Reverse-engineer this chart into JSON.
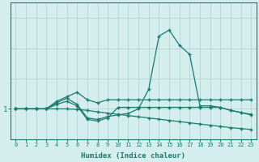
{
  "xlabel": "Humidex (Indice chaleur)",
  "xlim": [
    -0.5,
    23.5
  ],
  "ylim": [
    0.0,
    4.5
  ],
  "yticks": [
    1
  ],
  "xticks": [
    0,
    1,
    2,
    3,
    4,
    5,
    6,
    7,
    8,
    9,
    10,
    11,
    12,
    13,
    14,
    15,
    16,
    17,
    18,
    19,
    20,
    21,
    22,
    23
  ],
  "background_color": "#d4eeee",
  "line_color": "#1a7a6e",
  "grid_color": "#b8d8d8",
  "line1_x": [
    0,
    1,
    2,
    3,
    4,
    5,
    6,
    7,
    8,
    9,
    10,
    11,
    12,
    13,
    14,
    15,
    16,
    17,
    18,
    19,
    20,
    21,
    22,
    23
  ],
  "line1_y": [
    1.0,
    1.0,
    1.0,
    1.0,
    1.25,
    1.4,
    1.55,
    1.3,
    1.2,
    1.3,
    1.3,
    1.3,
    1.3,
    1.3,
    1.3,
    1.3,
    1.3,
    1.3,
    1.3,
    1.3,
    1.3,
    1.3,
    1.3,
    1.3
  ],
  "line2_x": [
    0,
    1,
    2,
    3,
    4,
    5,
    6,
    7,
    8,
    9,
    10,
    11,
    12,
    13,
    14,
    15,
    16,
    17,
    18,
    19,
    20,
    21,
    22,
    23
  ],
  "line2_y": [
    1.0,
    1.0,
    1.0,
    1.0,
    1.2,
    1.35,
    1.15,
    0.7,
    0.65,
    0.75,
    0.8,
    0.85,
    1.0,
    1.65,
    3.4,
    3.6,
    3.1,
    2.8,
    1.1,
    1.1,
    1.05,
    0.95,
    0.88,
    0.82
  ],
  "line3_x": [
    0,
    1,
    2,
    3,
    4,
    5,
    6,
    7,
    8,
    9,
    10,
    11,
    12,
    13,
    14,
    15,
    16,
    17,
    18,
    19,
    20,
    21,
    22,
    23
  ],
  "line3_y": [
    1.0,
    1.0,
    1.0,
    1.0,
    1.15,
    1.25,
    1.1,
    0.65,
    0.6,
    0.7,
    1.05,
    1.05,
    1.05,
    1.05,
    1.05,
    1.05,
    1.05,
    1.05,
    1.05,
    1.05,
    1.05,
    0.95,
    0.88,
    0.8
  ],
  "line4_x": [
    0,
    1,
    2,
    3,
    4,
    5,
    6,
    7,
    8,
    9,
    10,
    11,
    12,
    13,
    14,
    15,
    16,
    17,
    18,
    19,
    20,
    21,
    22,
    23
  ],
  "line4_y": [
    1.0,
    1.0,
    1.0,
    1.0,
    1.0,
    1.0,
    0.98,
    0.95,
    0.9,
    0.86,
    0.82,
    0.78,
    0.74,
    0.7,
    0.66,
    0.62,
    0.58,
    0.54,
    0.5,
    0.46,
    0.42,
    0.38,
    0.35,
    0.32
  ]
}
